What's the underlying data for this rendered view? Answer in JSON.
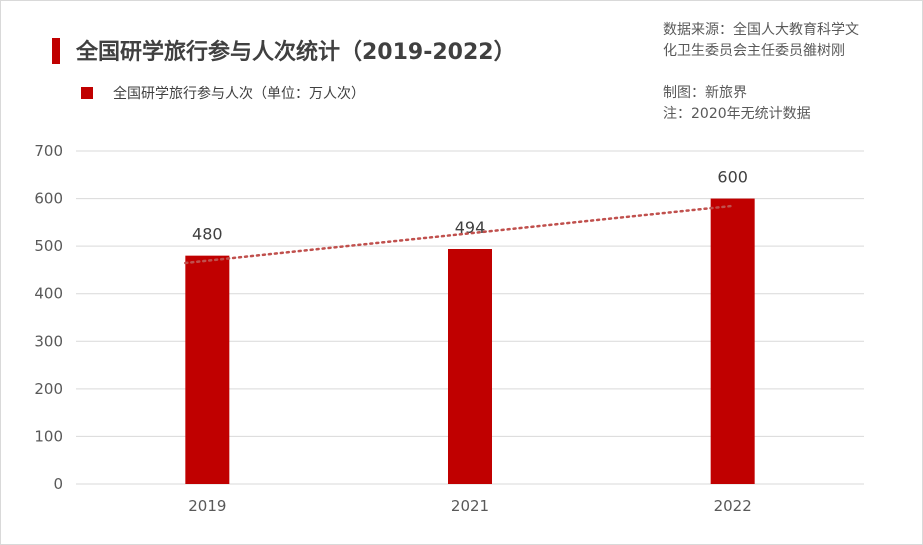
{
  "header": {
    "title": "全国研学旅行参与人次统计（2019-2022）"
  },
  "legend": {
    "label": "全国研学旅行参与人次（单位：万人次）"
  },
  "notes": {
    "source_line1": "数据来源：全国人大教育科学文",
    "source_line2": "化卫生委员会主任委员雒树刚",
    "author": "制图：新旅界",
    "note": "注：2020年无统计数据"
  },
  "colors": {
    "bar": "#c00000",
    "trendline": "#c0504d",
    "grid": "#d9d9d9"
  },
  "chart_data": {
    "type": "bar",
    "title": "全国研学旅行参与人次统计（2019-2022）",
    "categories": [
      "2019",
      "2021",
      "2022"
    ],
    "series": [
      {
        "name": "全国研学旅行参与人次（单位：万人次）",
        "values": [
          480,
          494,
          600
        ]
      }
    ],
    "data_labels": [
      "480",
      "494",
      "600"
    ],
    "y_ticks": [
      "0",
      "100",
      "200",
      "300",
      "400",
      "500",
      "600",
      "700"
    ],
    "ylim": [
      0,
      700
    ],
    "trendline": "linear-dotted",
    "grid": true,
    "xlabel": "",
    "ylabel": ""
  }
}
